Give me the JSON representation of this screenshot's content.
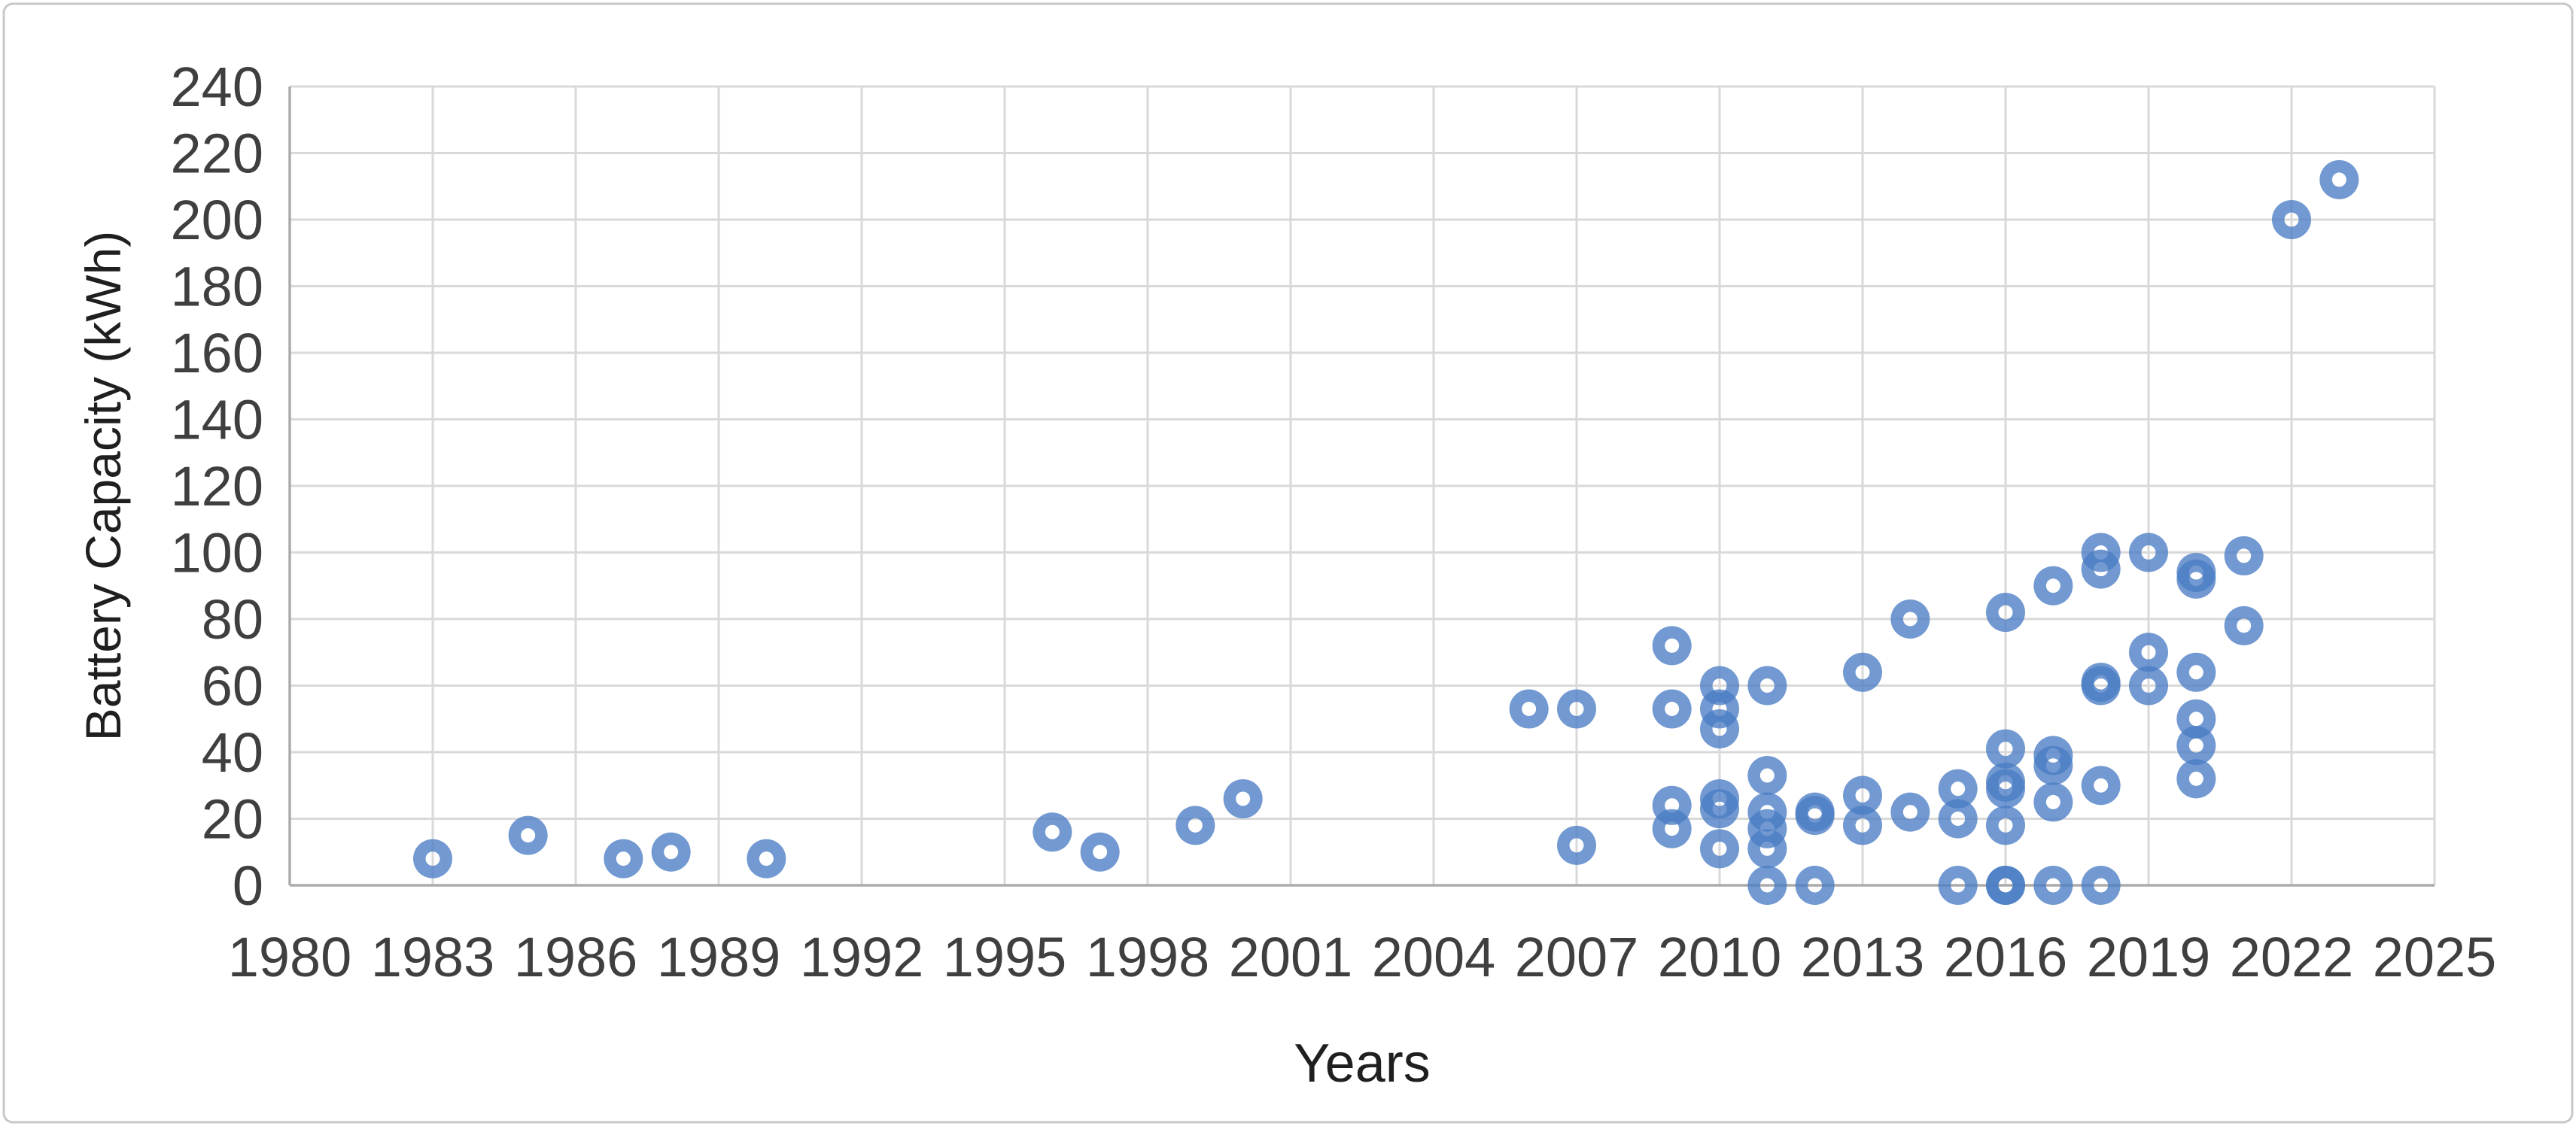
{
  "figure": {
    "background_color": "#ffffff",
    "border_color": "#c8c8c8"
  },
  "chart_data": {
    "type": "scatter",
    "title": "",
    "xlabel": "Years",
    "ylabel": "Battery Capacity (kWh)",
    "xlim": [
      1980,
      2025
    ],
    "ylim": [
      0,
      240
    ],
    "x_tick_step": 3,
    "y_tick_step": 20,
    "x_ticks": [
      1980,
      1983,
      1986,
      1989,
      1992,
      1995,
      1998,
      2001,
      2004,
      2007,
      2010,
      2013,
      2016,
      2019,
      2022,
      2025
    ],
    "y_ticks": [
      0,
      20,
      40,
      60,
      80,
      100,
      120,
      140,
      160,
      180,
      200,
      220,
      240
    ],
    "grid": true,
    "legend": false,
    "marker": {
      "shape": "donut-circle",
      "color": "#4a7cc4",
      "opacity": 0.78,
      "outer_radius": 26,
      "hole_radius": 9.5
    },
    "gridline_color": "#d9d9d9",
    "axis_line_color": "#ababab",
    "tick_label_color": "#3f3f3f",
    "axis_title_color": "#1f1f1f",
    "points": [
      {
        "x": 1983,
        "y": 8
      },
      {
        "x": 1985,
        "y": 15
      },
      {
        "x": 1987,
        "y": 8
      },
      {
        "x": 1988,
        "y": 10
      },
      {
        "x": 1990,
        "y": 8
      },
      {
        "x": 1996,
        "y": 16
      },
      {
        "x": 1997,
        "y": 10
      },
      {
        "x": 1999,
        "y": 18
      },
      {
        "x": 2000,
        "y": 26
      },
      {
        "x": 2006,
        "y": 53
      },
      {
        "x": 2007,
        "y": 53
      },
      {
        "x": 2007,
        "y": 12
      },
      {
        "x": 2009,
        "y": 72
      },
      {
        "x": 2009,
        "y": 53
      },
      {
        "x": 2009,
        "y": 24
      },
      {
        "x": 2009,
        "y": 17
      },
      {
        "x": 2010,
        "y": 60
      },
      {
        "x": 2010,
        "y": 53
      },
      {
        "x": 2010,
        "y": 47
      },
      {
        "x": 2010,
        "y": 26
      },
      {
        "x": 2010,
        "y": 23
      },
      {
        "x": 2010,
        "y": 11
      },
      {
        "x": 2011,
        "y": 60
      },
      {
        "x": 2011,
        "y": 33
      },
      {
        "x": 2011,
        "y": 22
      },
      {
        "x": 2011,
        "y": 17
      },
      {
        "x": 2011,
        "y": 11
      },
      {
        "x": 2011,
        "y": 0
      },
      {
        "x": 2012,
        "y": 22
      },
      {
        "x": 2012,
        "y": 21
      },
      {
        "x": 2012,
        "y": 0
      },
      {
        "x": 2013,
        "y": 64
      },
      {
        "x": 2013,
        "y": 27
      },
      {
        "x": 2013,
        "y": 18
      },
      {
        "x": 2014,
        "y": 80
      },
      {
        "x": 2014,
        "y": 22
      },
      {
        "x": 2015,
        "y": 29
      },
      {
        "x": 2015,
        "y": 20
      },
      {
        "x": 2015,
        "y": 0
      },
      {
        "x": 2016,
        "y": 82
      },
      {
        "x": 2016,
        "y": 41
      },
      {
        "x": 2016,
        "y": 31
      },
      {
        "x": 2016,
        "y": 29
      },
      {
        "x": 2016,
        "y": 18
      },
      {
        "x": 2016,
        "y": 0
      },
      {
        "x": 2016,
        "y": 0
      },
      {
        "x": 2017,
        "y": 90
      },
      {
        "x": 2017,
        "y": 39
      },
      {
        "x": 2017,
        "y": 36
      },
      {
        "x": 2017,
        "y": 25
      },
      {
        "x": 2017,
        "y": 0
      },
      {
        "x": 2018,
        "y": 100
      },
      {
        "x": 2018,
        "y": 95
      },
      {
        "x": 2018,
        "y": 61
      },
      {
        "x": 2018,
        "y": 60
      },
      {
        "x": 2018,
        "y": 30
      },
      {
        "x": 2018,
        "y": 0
      },
      {
        "x": 2019,
        "y": 100
      },
      {
        "x": 2019,
        "y": 70
      },
      {
        "x": 2019,
        "y": 60
      },
      {
        "x": 2020,
        "y": 94
      },
      {
        "x": 2020,
        "y": 92
      },
      {
        "x": 2020,
        "y": 64
      },
      {
        "x": 2020,
        "y": 50
      },
      {
        "x": 2020,
        "y": 42
      },
      {
        "x": 2020,
        "y": 32
      },
      {
        "x": 2021,
        "y": 99
      },
      {
        "x": 2021,
        "y": 78
      },
      {
        "x": 2022,
        "y": 200
      },
      {
        "x": 2023,
        "y": 212
      }
    ]
  }
}
